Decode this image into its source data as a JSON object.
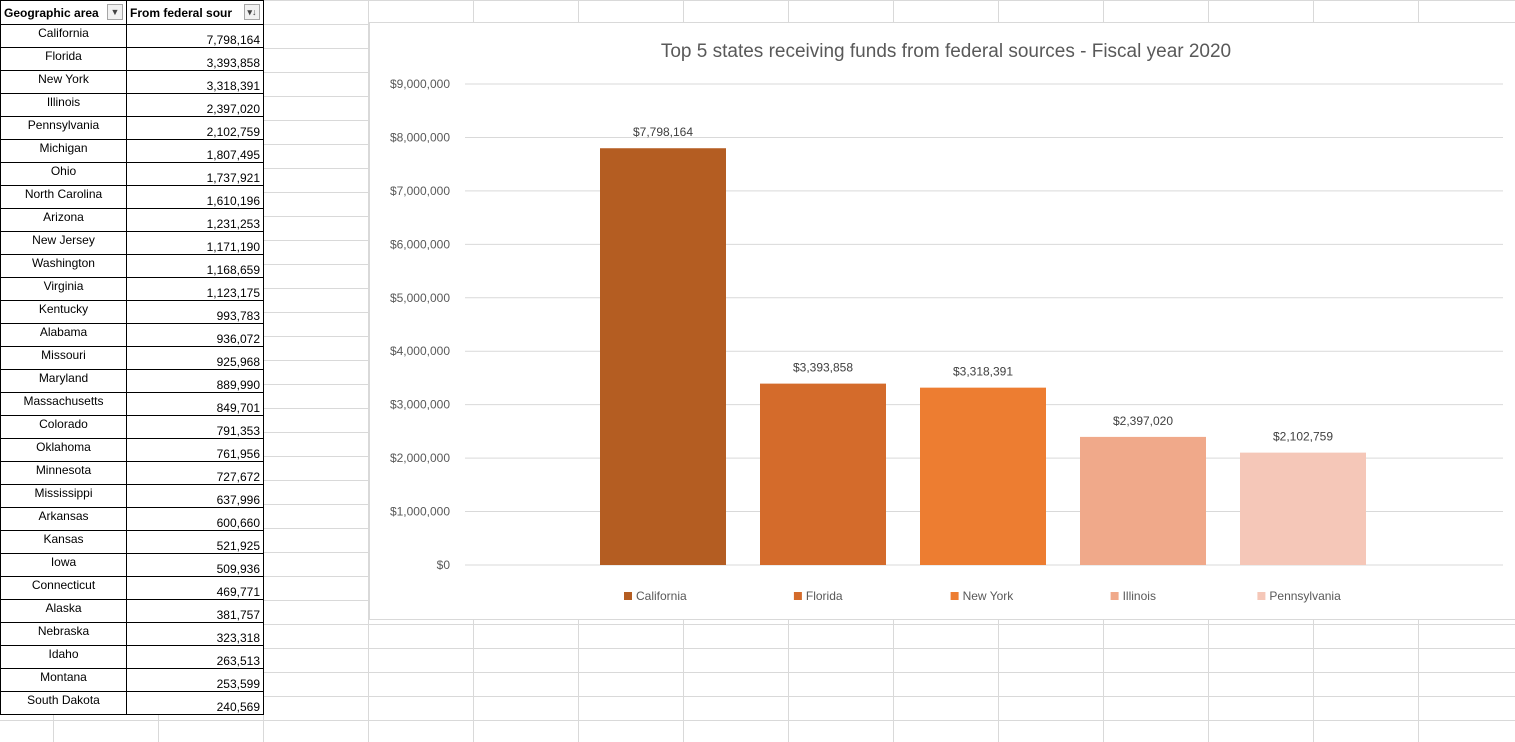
{
  "table": {
    "headers": [
      "Geographic area",
      "From federal sour"
    ],
    "rows": [
      {
        "area": "California",
        "value": "7,798,164"
      },
      {
        "area": "Florida",
        "value": "3,393,858"
      },
      {
        "area": "New York",
        "value": "3,318,391"
      },
      {
        "area": "Illinois",
        "value": "2,397,020"
      },
      {
        "area": "Pennsylvania",
        "value": "2,102,759"
      },
      {
        "area": "Michigan",
        "value": "1,807,495"
      },
      {
        "area": "Ohio",
        "value": "1,737,921"
      },
      {
        "area": "North Carolina",
        "value": "1,610,196"
      },
      {
        "area": "Arizona",
        "value": "1,231,253"
      },
      {
        "area": "New Jersey",
        "value": "1,171,190"
      },
      {
        "area": "Washington",
        "value": "1,168,659"
      },
      {
        "area": "Virginia",
        "value": "1,123,175"
      },
      {
        "area": "Kentucky",
        "value": "993,783"
      },
      {
        "area": "Alabama",
        "value": "936,072"
      },
      {
        "area": "Missouri",
        "value": "925,968"
      },
      {
        "area": "Maryland",
        "value": "889,990"
      },
      {
        "area": "Massachusetts",
        "value": "849,701"
      },
      {
        "area": "Colorado",
        "value": "791,353"
      },
      {
        "area": "Oklahoma",
        "value": "761,956"
      },
      {
        "area": "Minnesota",
        "value": "727,672"
      },
      {
        "area": "Mississippi",
        "value": "637,996"
      },
      {
        "area": "Arkansas",
        "value": "600,660"
      },
      {
        "area": "Kansas",
        "value": "521,925"
      },
      {
        "area": "Iowa",
        "value": "509,936"
      },
      {
        "area": "Connecticut",
        "value": "469,771"
      },
      {
        "area": "Alaska",
        "value": "381,757"
      },
      {
        "area": "Nebraska",
        "value": "323,318"
      },
      {
        "area": "Idaho",
        "value": "263,513"
      },
      {
        "area": "Montana",
        "value": "253,599"
      },
      {
        "area": "South Dakota",
        "value": "240,569"
      }
    ],
    "filter_icons": [
      "filter-dropdown-icon",
      "sort-descending-filter-icon"
    ]
  },
  "chart_data": {
    "type": "bar",
    "title": "Top 5 states receiving funds from federal sources - Fiscal year 2020",
    "categories": [
      "California",
      "Florida",
      "New York",
      "Illinois",
      "Pennsylvania"
    ],
    "values": [
      7798164,
      3393858,
      3318391,
      2397020,
      2102759
    ],
    "data_labels": [
      "$7,798,164",
      "$3,393,858",
      "$3,318,391",
      "$2,397,020",
      "$2,102,759"
    ],
    "colors": [
      "#b45d22",
      "#d46b2b",
      "#ed7d31",
      "#f0a98a",
      "#f5c7b8"
    ],
    "ylim": [
      0,
      9000000
    ],
    "yticks": [
      0,
      1000000,
      2000000,
      3000000,
      4000000,
      5000000,
      6000000,
      7000000,
      8000000,
      9000000
    ],
    "ytick_labels": [
      "$0",
      "$1,000,000",
      "$2,000,000",
      "$3,000,000",
      "$4,000,000",
      "$5,000,000",
      "$6,000,000",
      "$7,000,000",
      "$8,000,000",
      "$9,000,000"
    ],
    "grid": true,
    "legend": "bottom"
  }
}
